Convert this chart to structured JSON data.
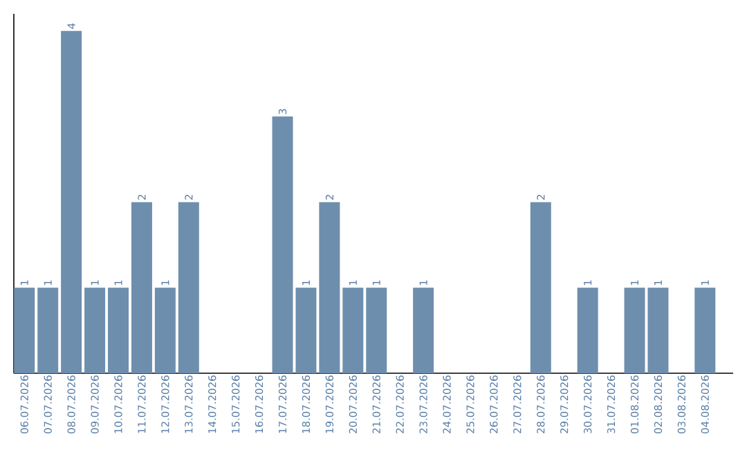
{
  "chart_data": {
    "type": "bar",
    "categories": [
      "06.07.2026",
      "07.07.2026",
      "08.07.2026",
      "09.07.2026",
      "10.07.2026",
      "11.07.2026",
      "12.07.2026",
      "13.07.2026",
      "14.07.2026",
      "15.07.2026",
      "16.07.2026",
      "17.07.2026",
      "18.07.2026",
      "19.07.2026",
      "20.07.2026",
      "21.07.2026",
      "22.07.2026",
      "23.07.2026",
      "24.07.2026",
      "25.07.2026",
      "26.07.2026",
      "27.07.2026",
      "28.07.2026",
      "29.07.2026",
      "30.07.2026",
      "31.07.2026",
      "01.08.2026",
      "02.08.2026",
      "03.08.2026",
      "04.08.2026"
    ],
    "values": [
      1,
      1,
      4,
      1,
      1,
      2,
      1,
      2,
      0,
      0,
      0,
      3,
      1,
      2,
      1,
      1,
      0,
      1,
      0,
      0,
      0,
      0,
      2,
      0,
      1,
      0,
      1,
      1,
      0,
      1
    ],
    "value_labels": [
      "1",
      "1",
      "4",
      "1",
      "1",
      "2",
      "1",
      "2",
      null,
      null,
      null,
      "3",
      "1",
      "2",
      "1",
      "1",
      null,
      "1",
      null,
      null,
      null,
      null,
      "2",
      null,
      "1",
      null,
      "1",
      "1",
      null,
      "1"
    ],
    "color": "#6e8eae",
    "ylim": [
      0,
      4.2
    ]
  }
}
